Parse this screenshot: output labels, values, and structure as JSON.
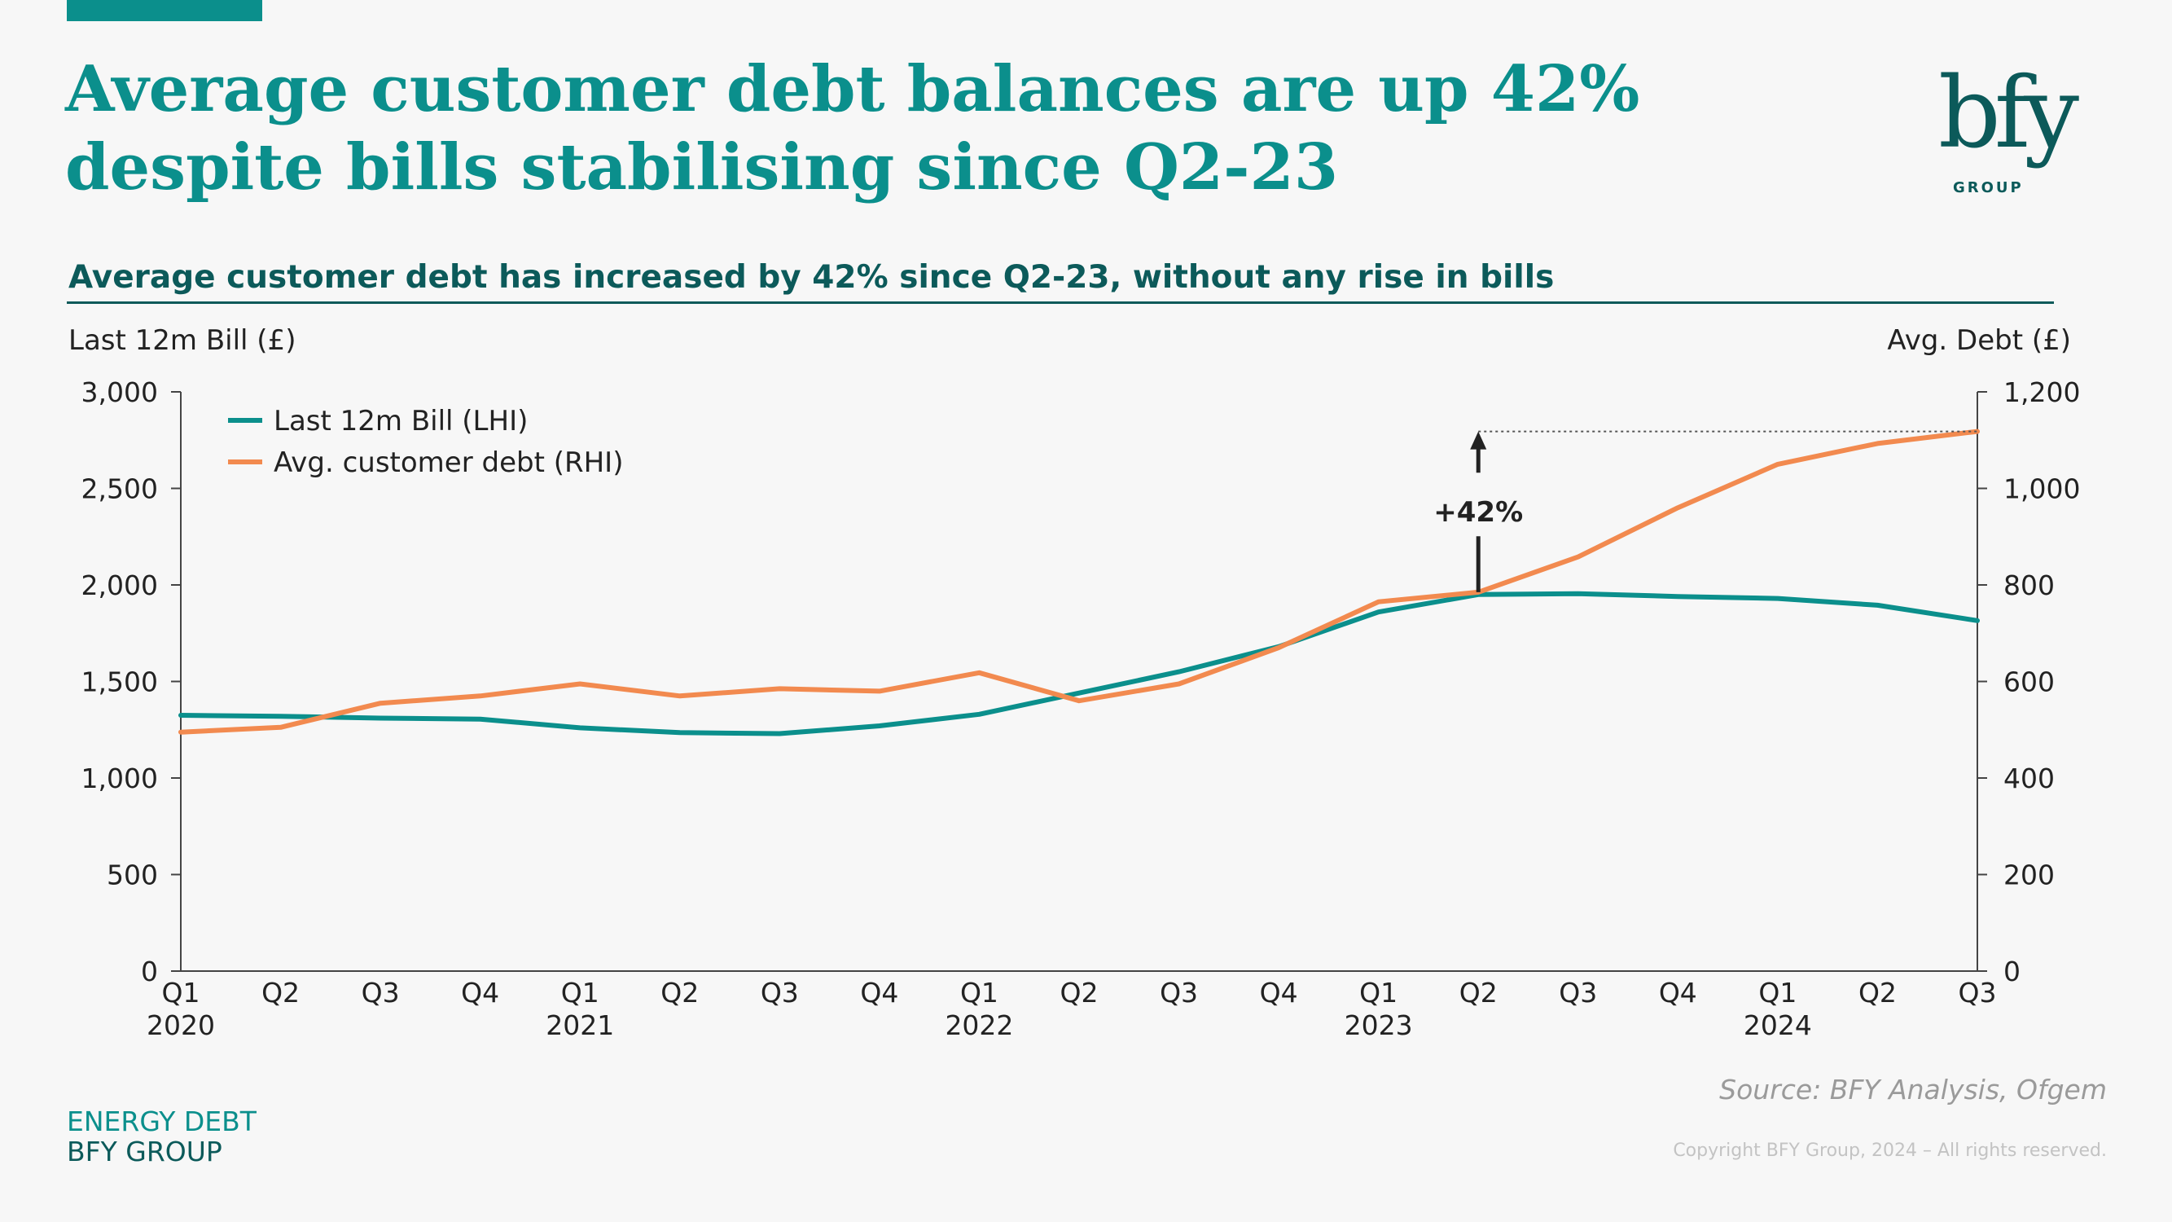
{
  "header": {
    "title": "Average customer debt balances are up 42% despite bills stabilising since Q2-23",
    "logo_text": "bfy",
    "logo_subtext": "GROUP"
  },
  "subtitle": "Average customer debt has increased by 42% since Q2-23, without any rise in bills",
  "footer": {
    "section_label": "ENERGY DEBT",
    "company_label": "BFY GROUP",
    "source": "Source: BFY Analysis, Ofgem",
    "copyright": "Copyright BFY Group, 2024 – All rights reserved."
  },
  "colors": {
    "teal": "#0b8f8c",
    "dark_teal": "#0c5a5a",
    "orange": "#f28a4f",
    "background": "#f7f7f7"
  },
  "chart_data": {
    "type": "line",
    "ylabel": "Last 12m Bill (£)",
    "y2label": "Avg. Debt (£)",
    "categories": [
      "Q1",
      "Q2",
      "Q3",
      "Q4",
      "Q1",
      "Q2",
      "Q3",
      "Q4",
      "Q1",
      "Q2",
      "Q3",
      "Q4",
      "Q1",
      "Q2",
      "Q3",
      "Q4",
      "Q1",
      "Q2",
      "Q3"
    ],
    "year_labels": [
      {
        "index": 0,
        "label": "2020"
      },
      {
        "index": 4,
        "label": "2021"
      },
      {
        "index": 8,
        "label": "2022"
      },
      {
        "index": 12,
        "label": "2023"
      },
      {
        "index": 16,
        "label": "2024"
      }
    ],
    "ylim": [
      0,
      3000
    ],
    "yticks": [
      "0",
      "500",
      "1,000",
      "1,500",
      "2,000",
      "2,500",
      "3,000"
    ],
    "y2lim": [
      0,
      1200
    ],
    "y2ticks": [
      "0",
      "200",
      "400",
      "600",
      "800",
      "1,000",
      "1,200"
    ],
    "legend_position": "top-left",
    "series": [
      {
        "name": "Last 12m Bill (LHI)",
        "axis": "left",
        "color": "#0b8f8c",
        "values": [
          1325,
          1320,
          1310,
          1305,
          1260,
          1235,
          1230,
          1270,
          1330,
          1440,
          1550,
          1680,
          1860,
          1950,
          1955,
          1940,
          1930,
          1895,
          1815
        ]
      },
      {
        "name": "Avg. customer debt (RHI)",
        "axis": "right",
        "color": "#f28a4f",
        "values": [
          495,
          505,
          555,
          570,
          595,
          570,
          585,
          580,
          618,
          560,
          595,
          670,
          765,
          785,
          858,
          960,
          1050,
          1093,
          1118
        ]
      }
    ],
    "annotations": [
      {
        "text": "+42%",
        "from_index": 13,
        "to_index": 18
      }
    ]
  }
}
